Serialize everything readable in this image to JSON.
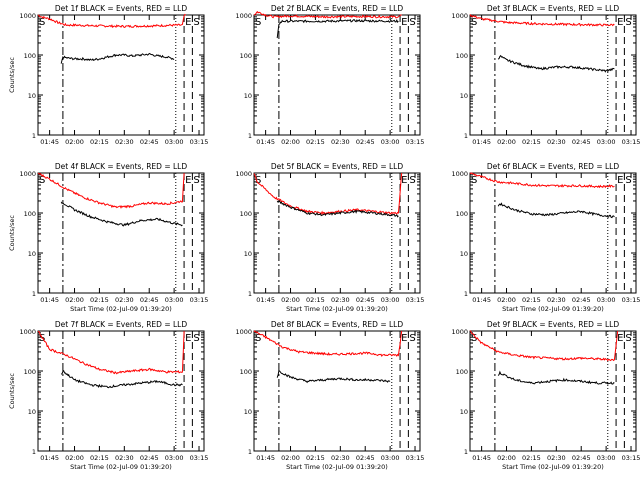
{
  "chart_data": [
    {
      "type": "line",
      "title": "Det 1f BLACK = Events, RED = LLD",
      "ylabel": "Counts/sec",
      "xlabel": "",
      "yscale": "log",
      "ylim": [
        1,
        1000
      ],
      "yticks": [
        "1",
        "10",
        "100",
        "1000"
      ],
      "xticks": [
        "01:45",
        "02:00",
        "02:15",
        "02:30",
        "02:45",
        "03:00",
        "03:15"
      ],
      "markers": [
        {
          "label": "S",
          "x": "01:38"
        },
        {
          "label": "E",
          "x": "03:06"
        },
        {
          "label": "S",
          "x": "03:11"
        }
      ],
      "series": [
        {
          "color": "#ff0000",
          "x": [
            "01:38",
            "01:40",
            "01:45",
            "01:50",
            "01:55",
            "02:00",
            "02:10",
            "02:20",
            "02:30",
            "02:40",
            "02:50",
            "02:58",
            "03:05",
            "03:06",
            "03:07"
          ],
          "values": [
            1000,
            900,
            800,
            650,
            560,
            560,
            540,
            530,
            520,
            530,
            540,
            555,
            560,
            950,
            1000
          ]
        },
        {
          "color": "#000000",
          "x": [
            "01:52",
            "01:53",
            "01:55",
            "02:00",
            "02:05",
            "02:10",
            "02:15",
            "02:20",
            "02:25",
            "02:30",
            "02:35",
            "02:40",
            "02:45",
            "02:50",
            "02:55",
            "03:00"
          ],
          "values": [
            60,
            90,
            85,
            80,
            80,
            75,
            80,
            90,
            100,
            100,
            95,
            100,
            105,
            95,
            90,
            80
          ]
        }
      ]
    },
    {
      "type": "line",
      "title": "Det 2f BLACK = Events, RED = LLD",
      "ylabel": "",
      "xlabel": "",
      "yscale": "log",
      "ylim": [
        1,
        1000
      ],
      "yticks": [
        "1",
        "10",
        "100",
        "1000"
      ],
      "xticks": [
        "01:45",
        "02:00",
        "02:15",
        "02:30",
        "02:45",
        "03:00",
        "03:15"
      ],
      "markers": [
        {
          "label": "S",
          "x": "01:38"
        },
        {
          "label": "E",
          "x": "03:06"
        },
        {
          "label": "S",
          "x": "03:11"
        }
      ],
      "series": [
        {
          "color": "#ff0000",
          "x": [
            "01:38",
            "01:40",
            "01:45",
            "01:50",
            "02:00",
            "02:20",
            "02:40",
            "03:05",
            "03:07"
          ],
          "values": [
            1000,
            1200,
            1000,
            900,
            950,
            900,
            920,
            900,
            1000
          ]
        },
        {
          "color": "#000000",
          "x": [
            "01:52",
            "01:53",
            "01:55",
            "02:00",
            "02:20",
            "02:40",
            "03:05"
          ],
          "values": [
            250,
            600,
            700,
            700,
            700,
            720,
            700
          ]
        }
      ]
    },
    {
      "type": "line",
      "title": "Det 3f BLACK = Events, RED = LLD",
      "ylabel": "",
      "xlabel": "",
      "yscale": "log",
      "ylim": [
        1,
        1000
      ],
      "yticks": [
        "1",
        "10",
        "100",
        "1000"
      ],
      "xticks": [
        "01:45",
        "02:00",
        "02:15",
        "02:30",
        "02:45",
        "03:00",
        "03:15"
      ],
      "markers": [
        {
          "label": "S",
          "x": "01:38"
        },
        {
          "label": "E",
          "x": "03:06"
        },
        {
          "label": "S",
          "x": "03:11"
        }
      ],
      "series": [
        {
          "color": "#ff0000",
          "x": [
            "01:38",
            "01:45",
            "02:00",
            "02:20",
            "02:40",
            "03:00",
            "03:05"
          ],
          "values": [
            1000,
            800,
            650,
            600,
            580,
            560,
            570
          ]
        },
        {
          "color": "#000000",
          "x": [
            "01:55",
            "01:56",
            "02:00",
            "02:10",
            "02:20",
            "02:30",
            "02:40",
            "02:50",
            "03:00",
            "03:05"
          ],
          "values": [
            80,
            95,
            75,
            55,
            45,
            50,
            50,
            45,
            40,
            45
          ]
        }
      ]
    },
    {
      "type": "line",
      "title": "Det 4f BLACK = Events, RED = LLD",
      "ylabel": "Counts/sec",
      "xlabel": "Start Time (02-Jul-09 01:39:20)",
      "yscale": "log",
      "ylim": [
        1,
        1000
      ],
      "yticks": [
        "1",
        "10",
        "100",
        "1000"
      ],
      "xticks": [
        "01:45",
        "02:00",
        "02:15",
        "02:30",
        "02:45",
        "03:00",
        "03:15"
      ],
      "markers": [
        {
          "label": "S",
          "x": "01:38"
        },
        {
          "label": "E",
          "x": "03:06"
        },
        {
          "label": "S",
          "x": "03:11"
        }
      ],
      "series": [
        {
          "color": "#ff0000",
          "x": [
            "01:38",
            "01:45",
            "01:55",
            "02:05",
            "02:15",
            "02:25",
            "02:35",
            "02:45",
            "02:55",
            "03:00",
            "03:05",
            "03:06"
          ],
          "values": [
            1000,
            700,
            400,
            250,
            180,
            140,
            150,
            180,
            170,
            180,
            200,
            1000
          ]
        },
        {
          "color": "#000000",
          "x": [
            "01:52",
            "01:53",
            "02:00",
            "02:10",
            "02:20",
            "02:30",
            "02:40",
            "02:50",
            "03:00",
            "03:05"
          ],
          "values": [
            180,
            180,
            120,
            80,
            60,
            50,
            65,
            70,
            55,
            50
          ]
        }
      ]
    },
    {
      "type": "line",
      "title": "Det 5f BLACK = Events, RED = LLD",
      "ylabel": "",
      "xlabel": "Start Time (02-Jul-09 01:39:20)",
      "yscale": "log",
      "ylim": [
        1,
        1000
      ],
      "yticks": [
        "1",
        "10",
        "100",
        "1000"
      ],
      "xticks": [
        "01:45",
        "02:00",
        "02:15",
        "02:30",
        "02:45",
        "03:00",
        "03:15"
      ],
      "markers": [
        {
          "label": "S",
          "x": "01:38"
        },
        {
          "label": "E",
          "x": "03:06"
        },
        {
          "label": "S",
          "x": "03:11"
        }
      ],
      "series": [
        {
          "color": "#ff0000",
          "x": [
            "01:38",
            "01:40",
            "01:50",
            "02:00",
            "02:10",
            "02:20",
            "02:30",
            "02:40",
            "02:50",
            "03:00",
            "03:05",
            "03:07"
          ],
          "values": [
            1000,
            600,
            250,
            150,
            110,
            100,
            110,
            120,
            110,
            100,
            100,
            1000
          ]
        },
        {
          "color": "#000000",
          "x": [
            "01:52",
            "02:00",
            "02:10",
            "02:20",
            "02:30",
            "02:40",
            "02:50",
            "03:00",
            "03:05"
          ],
          "values": [
            200,
            140,
            100,
            90,
            100,
            110,
            100,
            90,
            85
          ]
        }
      ]
    },
    {
      "type": "line",
      "title": "Det 6f BLACK = Events, RED = LLD",
      "ylabel": "",
      "xlabel": "Start Time (02-Jul-09 01:39:20)",
      "yscale": "log",
      "ylim": [
        1,
        1000
      ],
      "yticks": [
        "1",
        "10",
        "100",
        "1000"
      ],
      "xticks": [
        "01:45",
        "02:00",
        "02:15",
        "02:30",
        "02:45",
        "03:00",
        "03:15"
      ],
      "markers": [
        {
          "label": "S",
          "x": "01:38"
        },
        {
          "label": "E",
          "x": "03:06"
        },
        {
          "label": "S",
          "x": "03:11"
        }
      ],
      "series": [
        {
          "color": "#ff0000",
          "x": [
            "01:38",
            "01:45",
            "01:55",
            "02:05",
            "02:15",
            "02:25",
            "02:35",
            "02:45",
            "02:55",
            "03:05"
          ],
          "values": [
            1000,
            800,
            600,
            550,
            500,
            480,
            480,
            480,
            460,
            470
          ]
        },
        {
          "color": "#000000",
          "x": [
            "01:55",
            "01:56",
            "02:05",
            "02:15",
            "02:25",
            "02:35",
            "02:45",
            "02:55",
            "03:05"
          ],
          "values": [
            150,
            170,
            120,
            95,
            90,
            100,
            110,
            90,
            80
          ]
        }
      ]
    },
    {
      "type": "line",
      "title": "Det 7f BLACK = Events, RED = LLD",
      "ylabel": "Counts/sec",
      "xlabel": "Start Time (02-Jul-09 01:39:20)",
      "yscale": "log",
      "ylim": [
        1,
        1000
      ],
      "yticks": [
        "1",
        "10",
        "100",
        "1000"
      ],
      "xticks": [
        "01:45",
        "02:00",
        "02:15",
        "02:30",
        "02:45",
        "03:00",
        "03:15"
      ],
      "markers": [
        {
          "label": "S",
          "x": "01:38"
        },
        {
          "label": "E",
          "x": "03:06"
        },
        {
          "label": "S",
          "x": "03:11"
        }
      ],
      "series": [
        {
          "color": "#ff0000",
          "x": [
            "01:38",
            "01:45",
            "01:55",
            "02:05",
            "02:15",
            "02:25",
            "02:35",
            "02:45",
            "02:55",
            "03:05",
            "03:06"
          ],
          "values": [
            1000,
            350,
            250,
            160,
            110,
            90,
            100,
            110,
            95,
            95,
            1000
          ]
        },
        {
          "color": "#000000",
          "x": [
            "01:52",
            "01:53",
            "02:00",
            "02:10",
            "02:20",
            "02:30",
            "02:40",
            "02:50",
            "03:00",
            "03:05"
          ],
          "values": [
            80,
            100,
            60,
            45,
            40,
            45,
            50,
            55,
            45,
            45
          ]
        }
      ]
    },
    {
      "type": "line",
      "title": "Det 8f BLACK = Events, RED = LLD",
      "ylabel": "",
      "xlabel": "Start Time (02-Jul-09 01:39:20)",
      "yscale": "log",
      "ylim": [
        1,
        1000
      ],
      "yticks": [
        "1",
        "10",
        "100",
        "1000"
      ],
      "xticks": [
        "01:45",
        "02:00",
        "02:15",
        "02:30",
        "02:45",
        "03:00",
        "03:15"
      ],
      "markers": [
        {
          "label": "S",
          "x": "01:38"
        },
        {
          "label": "E",
          "x": "03:06"
        },
        {
          "label": "S",
          "x": "03:11"
        }
      ],
      "series": [
        {
          "color": "#ff0000",
          "x": [
            "01:38",
            "01:45",
            "01:55",
            "02:05",
            "02:15",
            "02:25",
            "02:35",
            "02:45",
            "02:50",
            "02:55",
            "03:05",
            "03:07"
          ],
          "values": [
            1000,
            700,
            400,
            300,
            280,
            260,
            270,
            280,
            270,
            250,
            250,
            1000
          ]
        },
        {
          "color": "#000000",
          "x": [
            "01:52",
            "01:53",
            "02:00",
            "02:10",
            "02:20",
            "02:30",
            "02:40",
            "02:50",
            "03:00"
          ],
          "values": [
            70,
            100,
            70,
            55,
            60,
            65,
            60,
            60,
            55
          ]
        }
      ]
    },
    {
      "type": "line",
      "title": "Det 9f BLACK = Events, RED = LLD",
      "ylabel": "",
      "xlabel": "Start Time (02-Jul-09 01:39:20)",
      "yscale": "log",
      "ylim": [
        1,
        1000
      ],
      "yticks": [
        "1",
        "10",
        "100",
        "1000"
      ],
      "xticks": [
        "01:45",
        "02:00",
        "02:15",
        "02:30",
        "02:45",
        "03:00",
        "03:15"
      ],
      "markers": [
        {
          "label": "S",
          "x": "01:38"
        },
        {
          "label": "E",
          "x": "03:06"
        },
        {
          "label": "S",
          "x": "03:11"
        }
      ],
      "series": [
        {
          "color": "#ff0000",
          "x": [
            "01:38",
            "01:45",
            "01:55",
            "02:05",
            "02:15",
            "02:25",
            "02:35",
            "02:45",
            "02:55",
            "03:05",
            "03:07"
          ],
          "values": [
            1000,
            500,
            300,
            250,
            220,
            210,
            200,
            210,
            200,
            190,
            1000
          ]
        },
        {
          "color": "#000000",
          "x": [
            "01:55",
            "01:56",
            "02:05",
            "02:15",
            "02:25",
            "02:35",
            "02:45",
            "02:55",
            "03:05"
          ],
          "values": [
            80,
            90,
            60,
            50,
            55,
            60,
            55,
            50,
            50
          ]
        }
      ]
    }
  ]
}
